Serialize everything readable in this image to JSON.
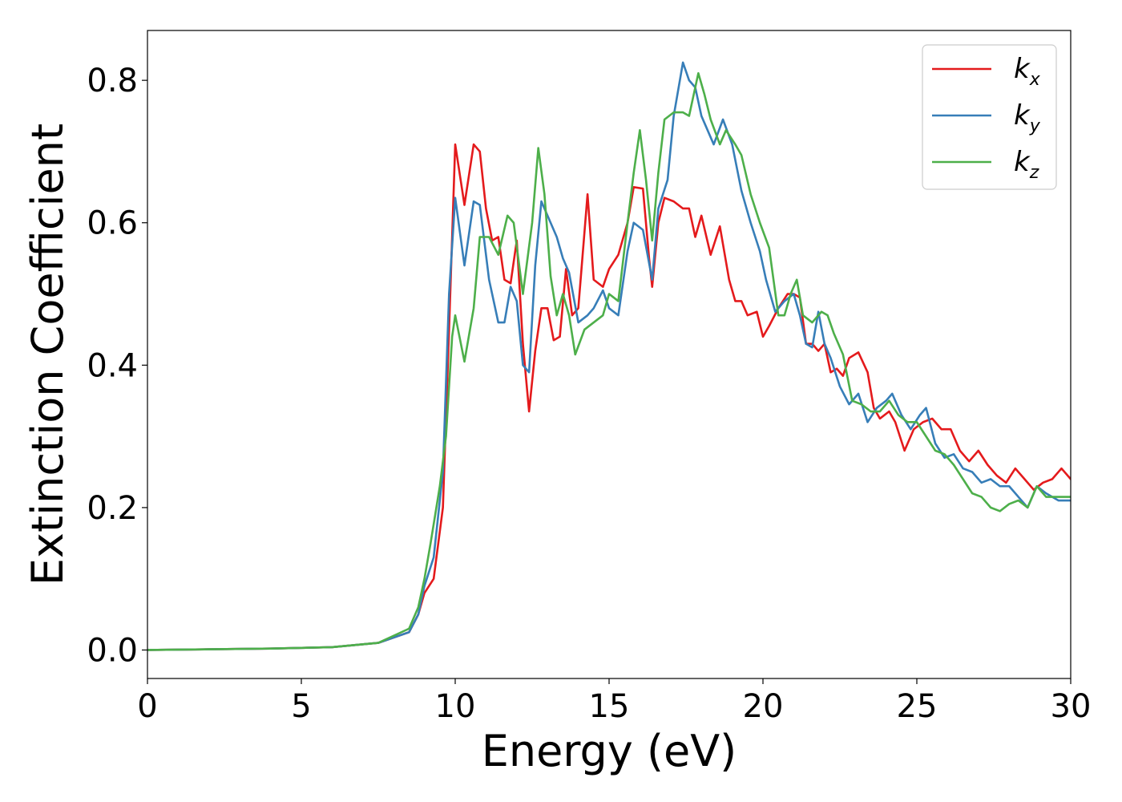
{
  "chart_data": {
    "type": "line",
    "xlabel": "Energy (eV)",
    "ylabel": "Extinction Coefficient",
    "xlim": [
      0,
      30
    ],
    "ylim": [
      -0.04,
      0.87
    ],
    "xticks": [
      0,
      5,
      10,
      15,
      20,
      25,
      30
    ],
    "xtick_labels": [
      "0",
      "5",
      "10",
      "15",
      "20",
      "25",
      "30"
    ],
    "yticks": [
      0.0,
      0.2,
      0.4,
      0.6,
      0.8
    ],
    "ytick_labels": [
      "0.0",
      "0.2",
      "0.4",
      "0.6",
      "0.8"
    ],
    "grid": false,
    "legend_position": "top-right",
    "series": [
      {
        "name": "k_x",
        "label_main": "k",
        "label_sub": "x",
        "color": "#e41a1c",
        "points": [
          [
            0,
            0
          ],
          [
            2,
            0.001
          ],
          [
            4,
            0.002
          ],
          [
            6,
            0.004
          ],
          [
            7.5,
            0.01
          ],
          [
            8.5,
            0.025
          ],
          [
            8.8,
            0.05
          ],
          [
            9.0,
            0.08
          ],
          [
            9.3,
            0.1
          ],
          [
            9.6,
            0.2
          ],
          [
            9.8,
            0.45
          ],
          [
            10.0,
            0.71
          ],
          [
            10.3,
            0.625
          ],
          [
            10.6,
            0.71
          ],
          [
            10.8,
            0.7
          ],
          [
            11.0,
            0.62
          ],
          [
            11.2,
            0.575
          ],
          [
            11.4,
            0.58
          ],
          [
            11.6,
            0.52
          ],
          [
            11.8,
            0.515
          ],
          [
            12.0,
            0.575
          ],
          [
            12.2,
            0.43
          ],
          [
            12.4,
            0.335
          ],
          [
            12.6,
            0.42
          ],
          [
            12.8,
            0.48
          ],
          [
            13.0,
            0.48
          ],
          [
            13.2,
            0.435
          ],
          [
            13.4,
            0.44
          ],
          [
            13.6,
            0.535
          ],
          [
            13.8,
            0.47
          ],
          [
            14.0,
            0.48
          ],
          [
            14.3,
            0.64
          ],
          [
            14.5,
            0.52
          ],
          [
            14.8,
            0.51
          ],
          [
            15.0,
            0.535
          ],
          [
            15.3,
            0.555
          ],
          [
            15.6,
            0.6
          ],
          [
            15.8,
            0.65
          ],
          [
            16.1,
            0.648
          ],
          [
            16.3,
            0.55
          ],
          [
            16.4,
            0.51
          ],
          [
            16.6,
            0.6
          ],
          [
            16.8,
            0.635
          ],
          [
            17.1,
            0.63
          ],
          [
            17.4,
            0.62
          ],
          [
            17.6,
            0.62
          ],
          [
            17.8,
            0.58
          ],
          [
            18.0,
            0.61
          ],
          [
            18.3,
            0.555
          ],
          [
            18.6,
            0.595
          ],
          [
            18.9,
            0.52
          ],
          [
            19.1,
            0.49
          ],
          [
            19.3,
            0.49
          ],
          [
            19.5,
            0.47
          ],
          [
            19.8,
            0.475
          ],
          [
            20.0,
            0.44
          ],
          [
            20.2,
            0.455
          ],
          [
            20.5,
            0.48
          ],
          [
            20.8,
            0.5
          ],
          [
            21.0,
            0.5
          ],
          [
            21.2,
            0.495
          ],
          [
            21.4,
            0.43
          ],
          [
            21.6,
            0.43
          ],
          [
            21.8,
            0.42
          ],
          [
            22.0,
            0.43
          ],
          [
            22.2,
            0.39
          ],
          [
            22.4,
            0.395
          ],
          [
            22.6,
            0.385
          ],
          [
            22.8,
            0.41
          ],
          [
            23.1,
            0.418
          ],
          [
            23.4,
            0.39
          ],
          [
            23.6,
            0.34
          ],
          [
            23.8,
            0.325
          ],
          [
            24.1,
            0.335
          ],
          [
            24.3,
            0.32
          ],
          [
            24.6,
            0.28
          ],
          [
            24.9,
            0.31
          ],
          [
            25.2,
            0.32
          ],
          [
            25.5,
            0.325
          ],
          [
            25.8,
            0.31
          ],
          [
            26.1,
            0.31
          ],
          [
            26.4,
            0.28
          ],
          [
            26.7,
            0.265
          ],
          [
            27.0,
            0.28
          ],
          [
            27.3,
            0.26
          ],
          [
            27.6,
            0.245
          ],
          [
            27.9,
            0.235
          ],
          [
            28.2,
            0.255
          ],
          [
            28.5,
            0.24
          ],
          [
            28.8,
            0.225
          ],
          [
            29.1,
            0.235
          ],
          [
            29.4,
            0.24
          ],
          [
            29.7,
            0.255
          ],
          [
            30.0,
            0.24
          ]
        ]
      },
      {
        "name": "k_y",
        "label_main": "k",
        "label_sub": "y",
        "color": "#377eb8",
        "points": [
          [
            0,
            0
          ],
          [
            2,
            0.001
          ],
          [
            4,
            0.002
          ],
          [
            6,
            0.004
          ],
          [
            7.5,
            0.01
          ],
          [
            8.5,
            0.025
          ],
          [
            8.8,
            0.05
          ],
          [
            9.0,
            0.09
          ],
          [
            9.3,
            0.13
          ],
          [
            9.6,
            0.25
          ],
          [
            9.8,
            0.5
          ],
          [
            10.0,
            0.635
          ],
          [
            10.3,
            0.54
          ],
          [
            10.6,
            0.63
          ],
          [
            10.8,
            0.625
          ],
          [
            11.1,
            0.52
          ],
          [
            11.4,
            0.46
          ],
          [
            11.6,
            0.46
          ],
          [
            11.8,
            0.51
          ],
          [
            12.0,
            0.49
          ],
          [
            12.2,
            0.4
          ],
          [
            12.4,
            0.39
          ],
          [
            12.6,
            0.54
          ],
          [
            12.8,
            0.63
          ],
          [
            13.0,
            0.61
          ],
          [
            13.3,
            0.58
          ],
          [
            13.5,
            0.55
          ],
          [
            13.7,
            0.53
          ],
          [
            14.0,
            0.46
          ],
          [
            14.3,
            0.47
          ],
          [
            14.5,
            0.48
          ],
          [
            14.8,
            0.505
          ],
          [
            15.0,
            0.48
          ],
          [
            15.3,
            0.47
          ],
          [
            15.6,
            0.56
          ],
          [
            15.8,
            0.6
          ],
          [
            16.1,
            0.59
          ],
          [
            16.4,
            0.52
          ],
          [
            16.6,
            0.62
          ],
          [
            16.9,
            0.66
          ],
          [
            17.1,
            0.75
          ],
          [
            17.4,
            0.825
          ],
          [
            17.6,
            0.8
          ],
          [
            17.8,
            0.79
          ],
          [
            18.0,
            0.75
          ],
          [
            18.2,
            0.73
          ],
          [
            18.4,
            0.71
          ],
          [
            18.7,
            0.745
          ],
          [
            19.0,
            0.71
          ],
          [
            19.3,
            0.645
          ],
          [
            19.6,
            0.6
          ],
          [
            19.9,
            0.56
          ],
          [
            20.1,
            0.52
          ],
          [
            20.4,
            0.475
          ],
          [
            20.7,
            0.49
          ],
          [
            21.0,
            0.5
          ],
          [
            21.2,
            0.47
          ],
          [
            21.4,
            0.43
          ],
          [
            21.6,
            0.425
          ],
          [
            21.8,
            0.475
          ],
          [
            22.0,
            0.43
          ],
          [
            22.2,
            0.41
          ],
          [
            22.5,
            0.37
          ],
          [
            22.8,
            0.345
          ],
          [
            23.1,
            0.36
          ],
          [
            23.4,
            0.32
          ],
          [
            23.7,
            0.34
          ],
          [
            24.0,
            0.35
          ],
          [
            24.2,
            0.36
          ],
          [
            24.5,
            0.33
          ],
          [
            24.8,
            0.31
          ],
          [
            25.1,
            0.33
          ],
          [
            25.3,
            0.34
          ],
          [
            25.6,
            0.29
          ],
          [
            25.9,
            0.27
          ],
          [
            26.2,
            0.275
          ],
          [
            26.5,
            0.255
          ],
          [
            26.8,
            0.25
          ],
          [
            27.1,
            0.235
          ],
          [
            27.4,
            0.24
          ],
          [
            27.7,
            0.23
          ],
          [
            28.0,
            0.23
          ],
          [
            28.3,
            0.215
          ],
          [
            28.6,
            0.2
          ],
          [
            28.9,
            0.23
          ],
          [
            29.2,
            0.22
          ],
          [
            29.6,
            0.21
          ],
          [
            30.0,
            0.21
          ]
        ]
      },
      {
        "name": "k_z",
        "label_main": "k",
        "label_sub": "z",
        "color": "#4daf4a",
        "points": [
          [
            0,
            0
          ],
          [
            2,
            0.001
          ],
          [
            4,
            0.002
          ],
          [
            6,
            0.004
          ],
          [
            7.5,
            0.01
          ],
          [
            8.5,
            0.03
          ],
          [
            8.8,
            0.06
          ],
          [
            9.0,
            0.1
          ],
          [
            9.2,
            0.15
          ],
          [
            9.5,
            0.23
          ],
          [
            9.7,
            0.3
          ],
          [
            9.9,
            0.44
          ],
          [
            10.0,
            0.47
          ],
          [
            10.3,
            0.405
          ],
          [
            10.6,
            0.48
          ],
          [
            10.8,
            0.58
          ],
          [
            11.1,
            0.58
          ],
          [
            11.4,
            0.555
          ],
          [
            11.7,
            0.61
          ],
          [
            11.9,
            0.6
          ],
          [
            12.2,
            0.5
          ],
          [
            12.5,
            0.6
          ],
          [
            12.7,
            0.705
          ],
          [
            12.9,
            0.64
          ],
          [
            13.1,
            0.525
          ],
          [
            13.3,
            0.47
          ],
          [
            13.5,
            0.5
          ],
          [
            13.7,
            0.47
          ],
          [
            13.9,
            0.415
          ],
          [
            14.2,
            0.45
          ],
          [
            14.5,
            0.46
          ],
          [
            14.8,
            0.47
          ],
          [
            15.0,
            0.5
          ],
          [
            15.3,
            0.49
          ],
          [
            15.6,
            0.6
          ],
          [
            15.8,
            0.67
          ],
          [
            16.0,
            0.73
          ],
          [
            16.2,
            0.66
          ],
          [
            16.4,
            0.575
          ],
          [
            16.6,
            0.67
          ],
          [
            16.8,
            0.745
          ],
          [
            17.1,
            0.755
          ],
          [
            17.4,
            0.755
          ],
          [
            17.6,
            0.75
          ],
          [
            17.9,
            0.81
          ],
          [
            18.1,
            0.78
          ],
          [
            18.3,
            0.745
          ],
          [
            18.6,
            0.71
          ],
          [
            18.8,
            0.73
          ],
          [
            19.1,
            0.71
          ],
          [
            19.3,
            0.695
          ],
          [
            19.6,
            0.64
          ],
          [
            19.9,
            0.6
          ],
          [
            20.2,
            0.565
          ],
          [
            20.5,
            0.47
          ],
          [
            20.7,
            0.47
          ],
          [
            20.9,
            0.5
          ],
          [
            21.1,
            0.52
          ],
          [
            21.3,
            0.47
          ],
          [
            21.6,
            0.46
          ],
          [
            21.9,
            0.475
          ],
          [
            22.1,
            0.47
          ],
          [
            22.3,
            0.445
          ],
          [
            22.6,
            0.415
          ],
          [
            22.9,
            0.35
          ],
          [
            23.2,
            0.345
          ],
          [
            23.5,
            0.335
          ],
          [
            23.8,
            0.335
          ],
          [
            24.1,
            0.35
          ],
          [
            24.4,
            0.33
          ],
          [
            24.7,
            0.32
          ],
          [
            25.0,
            0.32
          ],
          [
            25.3,
            0.3
          ],
          [
            25.6,
            0.28
          ],
          [
            25.9,
            0.275
          ],
          [
            26.2,
            0.26
          ],
          [
            26.5,
            0.24
          ],
          [
            26.8,
            0.22
          ],
          [
            27.1,
            0.215
          ],
          [
            27.4,
            0.2
          ],
          [
            27.7,
            0.195
          ],
          [
            28.0,
            0.205
          ],
          [
            28.3,
            0.21
          ],
          [
            28.6,
            0.2
          ],
          [
            28.9,
            0.23
          ],
          [
            29.2,
            0.215
          ],
          [
            29.6,
            0.215
          ],
          [
            30.0,
            0.215
          ]
        ]
      }
    ]
  }
}
